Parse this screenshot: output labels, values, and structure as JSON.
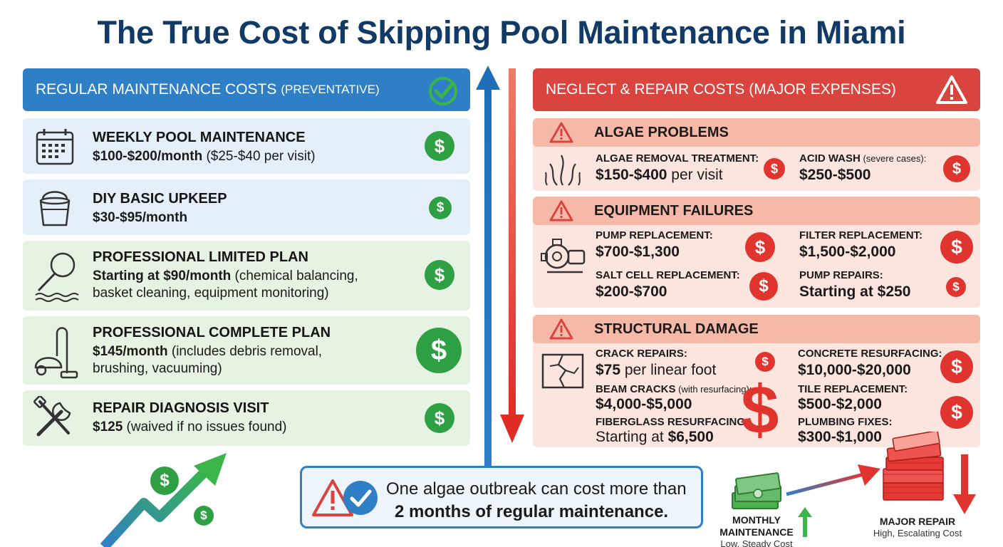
{
  "title": "The True Cost of Skipping Pool Maintenance in Miami",
  "left_header": {
    "main": "REGULAR MAINTENANCE COSTS",
    "sub": "(PREVENTATIVE)",
    "icon": "checkmark-circle-icon"
  },
  "right_header": {
    "main": "NEGLECT & REPAIR COSTS",
    "sub": "(MAJOR EXPENSES)",
    "icon": "warning-triangle-icon"
  },
  "left_cards": [
    {
      "title": "WEEKLY POOL MAINTENANCE",
      "price": "$100-$200/month",
      "detail": " ($25-$40 per visit)",
      "icon": "calendar-icon"
    },
    {
      "title": "DIY BASIC UPKEEP",
      "price": "$30-$95/month",
      "detail": "",
      "icon": "bucket-icon"
    },
    {
      "title": "PROFESSIONAL LIMITED PLAN",
      "price": "Starting at $90/month",
      "detail": " (chemical balancing,",
      "line2": "basket cleaning, equipment monitoring)",
      "icon": "pool-net-icon"
    },
    {
      "title": "PROFESSIONAL COMPLETE PLAN",
      "price": "$145/month",
      "detail": " (includes debris removal,",
      "line2": "brushing, vacuuming)",
      "icon": "pool-vacuum-icon"
    },
    {
      "title": "REPAIR DIAGNOSIS VISIT",
      "price": "$125",
      "detail": " (waived if no issues found)",
      "icon": "wrench-screwdriver-icon"
    }
  ],
  "algae": {
    "title": "ALGAE PROBLEMS",
    "items": [
      {
        "label": "ALGAE REMOVAL TREATMENT:",
        "value": "$150-$400",
        "suffix": " per visit"
      },
      {
        "label": "ACID WASH",
        "label_small": " (severe cases):",
        "value": "$250-$500",
        "suffix": ""
      }
    ]
  },
  "equipment": {
    "title": "EQUIPMENT FAILURES",
    "items": [
      {
        "label": "PUMP REPLACEMENT:",
        "value": "$700-$1,300"
      },
      {
        "label": "FILTER REPLACEMENT:",
        "value": "$1,500-$2,000"
      },
      {
        "label": "SALT CELL REPLACEMENT:",
        "value": "$200-$700"
      },
      {
        "label": "PUMP REPAIRS:",
        "value": "Starting at $250"
      }
    ]
  },
  "structural": {
    "title": "STRUCTURAL DAMAGE",
    "items": [
      {
        "label": "CRACK REPAIRS:",
        "label_small": "",
        "value": "$75",
        "suffix": " per linear foot"
      },
      {
        "label": "CONCRETE RESURFACING:",
        "label_small": "",
        "value": "$10,000-$20,000",
        "suffix": ""
      },
      {
        "label": "BEAM CRACKS",
        "label_small": " (with resurfacing):",
        "value": "$4,000-$5,000",
        "suffix": ""
      },
      {
        "label": "TILE REPLACEMENT:",
        "label_small": "",
        "value": "$500-$2,000",
        "suffix": ""
      },
      {
        "label": "FIBERGLASS RESURFACING:",
        "label_small": "",
        "value": "$6,500",
        "prefix": "Starting at ",
        "suffix": ""
      },
      {
        "label": "PLUMBING FIXES:",
        "label_small": "",
        "value": "$300-$1,000",
        "suffix": ""
      }
    ]
  },
  "callout": {
    "line1": "One algae outbreak can cost more than",
    "line2": "2 months of regular maintenance."
  },
  "comparison": {
    "left_label_1": "MONTHLY",
    "left_label_2": "MAINTENANCE",
    "left_sub": "Low, Steady Cost",
    "right_label": "MAJOR REPAIR",
    "right_sub": "High, Escalating Cost"
  },
  "colors": {
    "blue": "#2f7fc6",
    "red": "#d9443f",
    "green": "#2ea043",
    "navy": "#123a66"
  },
  "dollar_symbol": "$",
  "warn_symbol": "!"
}
